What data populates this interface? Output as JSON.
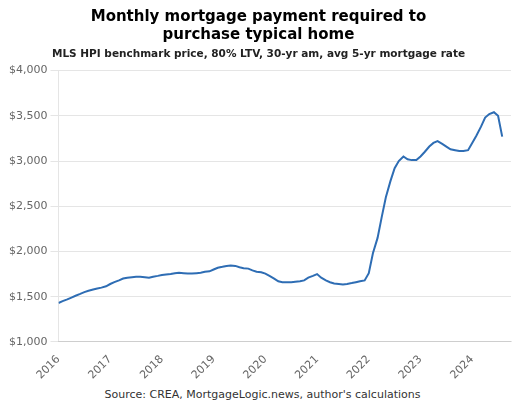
{
  "chart_data": {
    "type": "line",
    "title": "Monthly mortgage payment required to\npurchase typical home",
    "subtitle": "MLS HPI benchmark price, 80% LTV, 30-yr am, avg 5-yr mortgage rate",
    "source": "Source: CREA, MortgageLogic.news, author's calculations",
    "x": [
      2016.0,
      2016.08,
      2016.17,
      2016.25,
      2016.33,
      2016.42,
      2016.5,
      2016.58,
      2016.67,
      2016.75,
      2016.83,
      2016.92,
      2017.0,
      2017.08,
      2017.17,
      2017.25,
      2017.33,
      2017.42,
      2017.5,
      2017.58,
      2017.67,
      2017.75,
      2017.83,
      2017.92,
      2018.0,
      2018.08,
      2018.17,
      2018.25,
      2018.33,
      2018.42,
      2018.5,
      2018.58,
      2018.67,
      2018.75,
      2018.83,
      2018.92,
      2019.0,
      2019.08,
      2019.17,
      2019.25,
      2019.33,
      2019.42,
      2019.5,
      2019.58,
      2019.67,
      2019.75,
      2019.83,
      2019.92,
      2020.0,
      2020.08,
      2020.17,
      2020.25,
      2020.33,
      2020.42,
      2020.5,
      2020.58,
      2020.67,
      2020.75,
      2020.83,
      2020.92,
      2021.0,
      2021.08,
      2021.17,
      2021.25,
      2021.33,
      2021.42,
      2021.5,
      2021.58,
      2021.67,
      2021.75,
      2021.83,
      2021.92,
      2022.0,
      2022.08,
      2022.17,
      2022.25,
      2022.33,
      2022.42,
      2022.5,
      2022.58,
      2022.67,
      2022.75,
      2022.83,
      2022.92,
      2023.0,
      2023.08,
      2023.17,
      2023.25,
      2023.33,
      2023.42,
      2023.5,
      2023.58,
      2023.67,
      2023.75,
      2023.83,
      2023.92,
      2024.0,
      2024.08,
      2024.17,
      2024.25,
      2024.33,
      2024.42,
      2024.5,
      2024.58
    ],
    "values": [
      1430,
      1450,
      1470,
      1490,
      1510,
      1530,
      1550,
      1565,
      1580,
      1590,
      1600,
      1615,
      1640,
      1660,
      1680,
      1700,
      1710,
      1715,
      1720,
      1720,
      1715,
      1710,
      1720,
      1730,
      1740,
      1745,
      1750,
      1760,
      1765,
      1760,
      1755,
      1755,
      1760,
      1765,
      1775,
      1780,
      1800,
      1820,
      1830,
      1840,
      1845,
      1840,
      1825,
      1815,
      1810,
      1790,
      1775,
      1770,
      1755,
      1730,
      1700,
      1670,
      1660,
      1660,
      1660,
      1665,
      1670,
      1680,
      1710,
      1730,
      1750,
      1710,
      1680,
      1660,
      1645,
      1640,
      1635,
      1640,
      1650,
      1660,
      1670,
      1680,
      1760,
      1980,
      2150,
      2380,
      2600,
      2780,
      2920,
      3000,
      3050,
      3020,
      3010,
      3010,
      3050,
      3100,
      3160,
      3200,
      3220,
      3190,
      3160,
      3130,
      3120,
      3110,
      3110,
      3120,
      3200,
      3280,
      3380,
      3480,
      3520,
      3540,
      3500,
      3270
    ],
    "color": "#2e6db4",
    "xlim": [
      2016.0,
      2024.75
    ],
    "xticks": [
      2016,
      2017,
      2018,
      2019,
      2020,
      2021,
      2022,
      2023,
      2024
    ],
    "ylim": [
      1000,
      4000
    ],
    "yticks": [
      {
        "value": 1000,
        "label": "$1,000"
      },
      {
        "value": 1500,
        "label": "$1,500"
      },
      {
        "value": 2000,
        "label": "$2,000"
      },
      {
        "value": 2500,
        "label": "$2,500"
      },
      {
        "value": 3000,
        "label": "$3,000"
      },
      {
        "value": 3500,
        "label": "$3,500"
      },
      {
        "value": 4000,
        "label": "$4,000"
      }
    ],
    "grid": "y"
  }
}
